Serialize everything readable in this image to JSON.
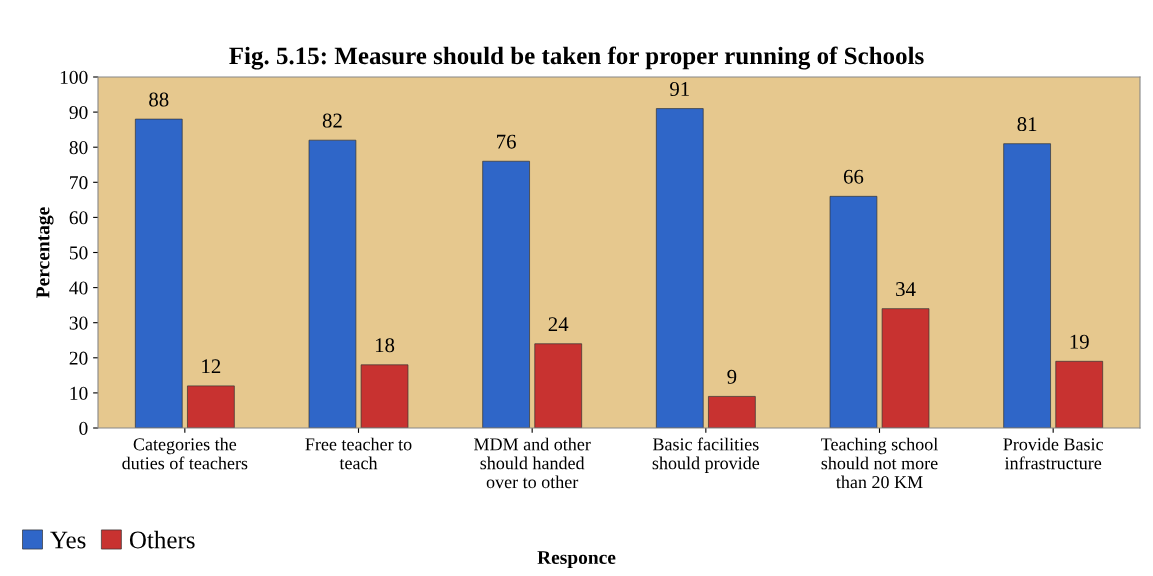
{
  "chart_data": {
    "type": "bar",
    "title": "Fig. 5.15: Measure should be taken for proper running of Schools",
    "xlabel": "Responce",
    "ylabel": "Percentage",
    "categories": [
      "Categories the\nduties of teachers",
      "Free teacher to\nteach",
      "MDM and other\nshould handed\nover to other",
      "Basic facilities\nshould provide",
      "Teaching school\nshould not more\nthan 20 KM",
      "Provide Basic\ninfrastructure"
    ],
    "series": [
      {
        "name": "Yes",
        "color": "#2f66c8",
        "values": [
          88,
          82,
          76,
          91,
          66,
          81
        ]
      },
      {
        "name": "Others",
        "color": "#c83230",
        "values": [
          12,
          18,
          24,
          9,
          34,
          19
        ]
      }
    ],
    "ylim": [
      0,
      100
    ],
    "yticks": [
      0,
      10,
      20,
      30,
      40,
      50,
      60,
      70,
      80,
      90,
      100
    ],
    "grid": false,
    "legend": "bottom left",
    "data_labels": true
  }
}
